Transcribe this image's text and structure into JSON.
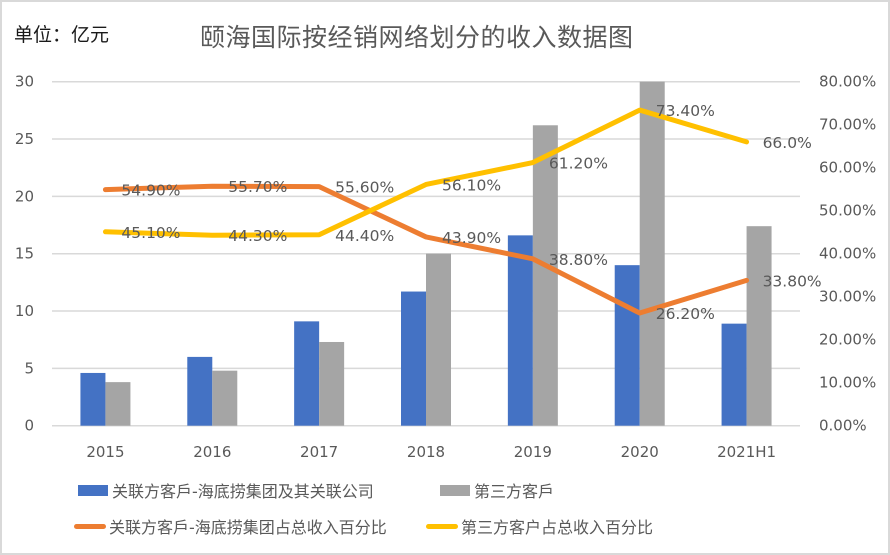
{
  "header": {
    "unit_label": "单位：亿元",
    "title": "颐海国际按经销网络划分的收入数据图"
  },
  "colors": {
    "related_bar": "#4472C4",
    "third_bar": "#A5A5A5",
    "related_line": "#ED7D31",
    "third_line": "#FFC000",
    "grid": "#D9D9D9",
    "text": "#595959"
  },
  "legend": {
    "items": [
      {
        "label": "关联方客戶-海底捞集团及其关联公司",
        "kind": "bar",
        "color": "#4472C4"
      },
      {
        "label": "第三方客戶",
        "kind": "bar",
        "color": "#A5A5A5"
      },
      {
        "label": "关联方客戶-海底捞集团占总收入百分比",
        "kind": "line",
        "color": "#ED7D31"
      },
      {
        "label": "第三方客户占总收入百分比",
        "kind": "line",
        "color": "#FFC000"
      }
    ]
  },
  "chart_data": {
    "type": "bar",
    "combo": "bar+line (dual axis)",
    "title": "颐海国际按经销网络划分的收入数据图",
    "unit": "亿元",
    "categories": [
      "2015",
      "2016",
      "2017",
      "2018",
      "2019",
      "2020",
      "2021H1"
    ],
    "left_axis": {
      "ylim": [
        0,
        30
      ],
      "ticks": [
        "0",
        "5",
        "10",
        "15",
        "20",
        "25",
        "30"
      ]
    },
    "right_axis": {
      "ylim": [
        0,
        80
      ],
      "ticks": [
        "0.00%",
        "10.00%",
        "20.00%",
        "30.00%",
        "40.00%",
        "50.00%",
        "60.00%",
        "70.00%",
        "80.00%"
      ]
    },
    "grid": true,
    "legend_position": "bottom",
    "series": [
      {
        "name": "关联方客戶-海底捞集团及其关联公司",
        "type": "bar",
        "axis": "left",
        "values": [
          4.6,
          6.0,
          9.1,
          11.7,
          16.6,
          14.0,
          8.9
        ]
      },
      {
        "name": "第三方客戶",
        "type": "bar",
        "axis": "left",
        "values": [
          3.8,
          4.8,
          7.3,
          15.0,
          26.2,
          30.0,
          17.4
        ]
      },
      {
        "name": "关联方客戶-海底捞集团占总收入百分比",
        "type": "line",
        "axis": "right",
        "values": [
          54.9,
          55.7,
          55.6,
          43.9,
          38.8,
          26.2,
          33.8
        ],
        "labels": [
          "54.90%",
          "55.70%",
          "55.60%",
          "43.90%",
          "38.80%",
          "26.20%",
          "33.80%"
        ]
      },
      {
        "name": "第三方客户占总收入百分比",
        "type": "line",
        "axis": "right",
        "values": [
          45.1,
          44.3,
          44.4,
          56.1,
          61.2,
          73.4,
          66.0
        ],
        "labels": [
          "45.10%",
          "44.30%",
          "44.40%",
          "56.10%",
          "61.20%",
          "73.40%",
          "66.0%"
        ]
      }
    ]
  }
}
